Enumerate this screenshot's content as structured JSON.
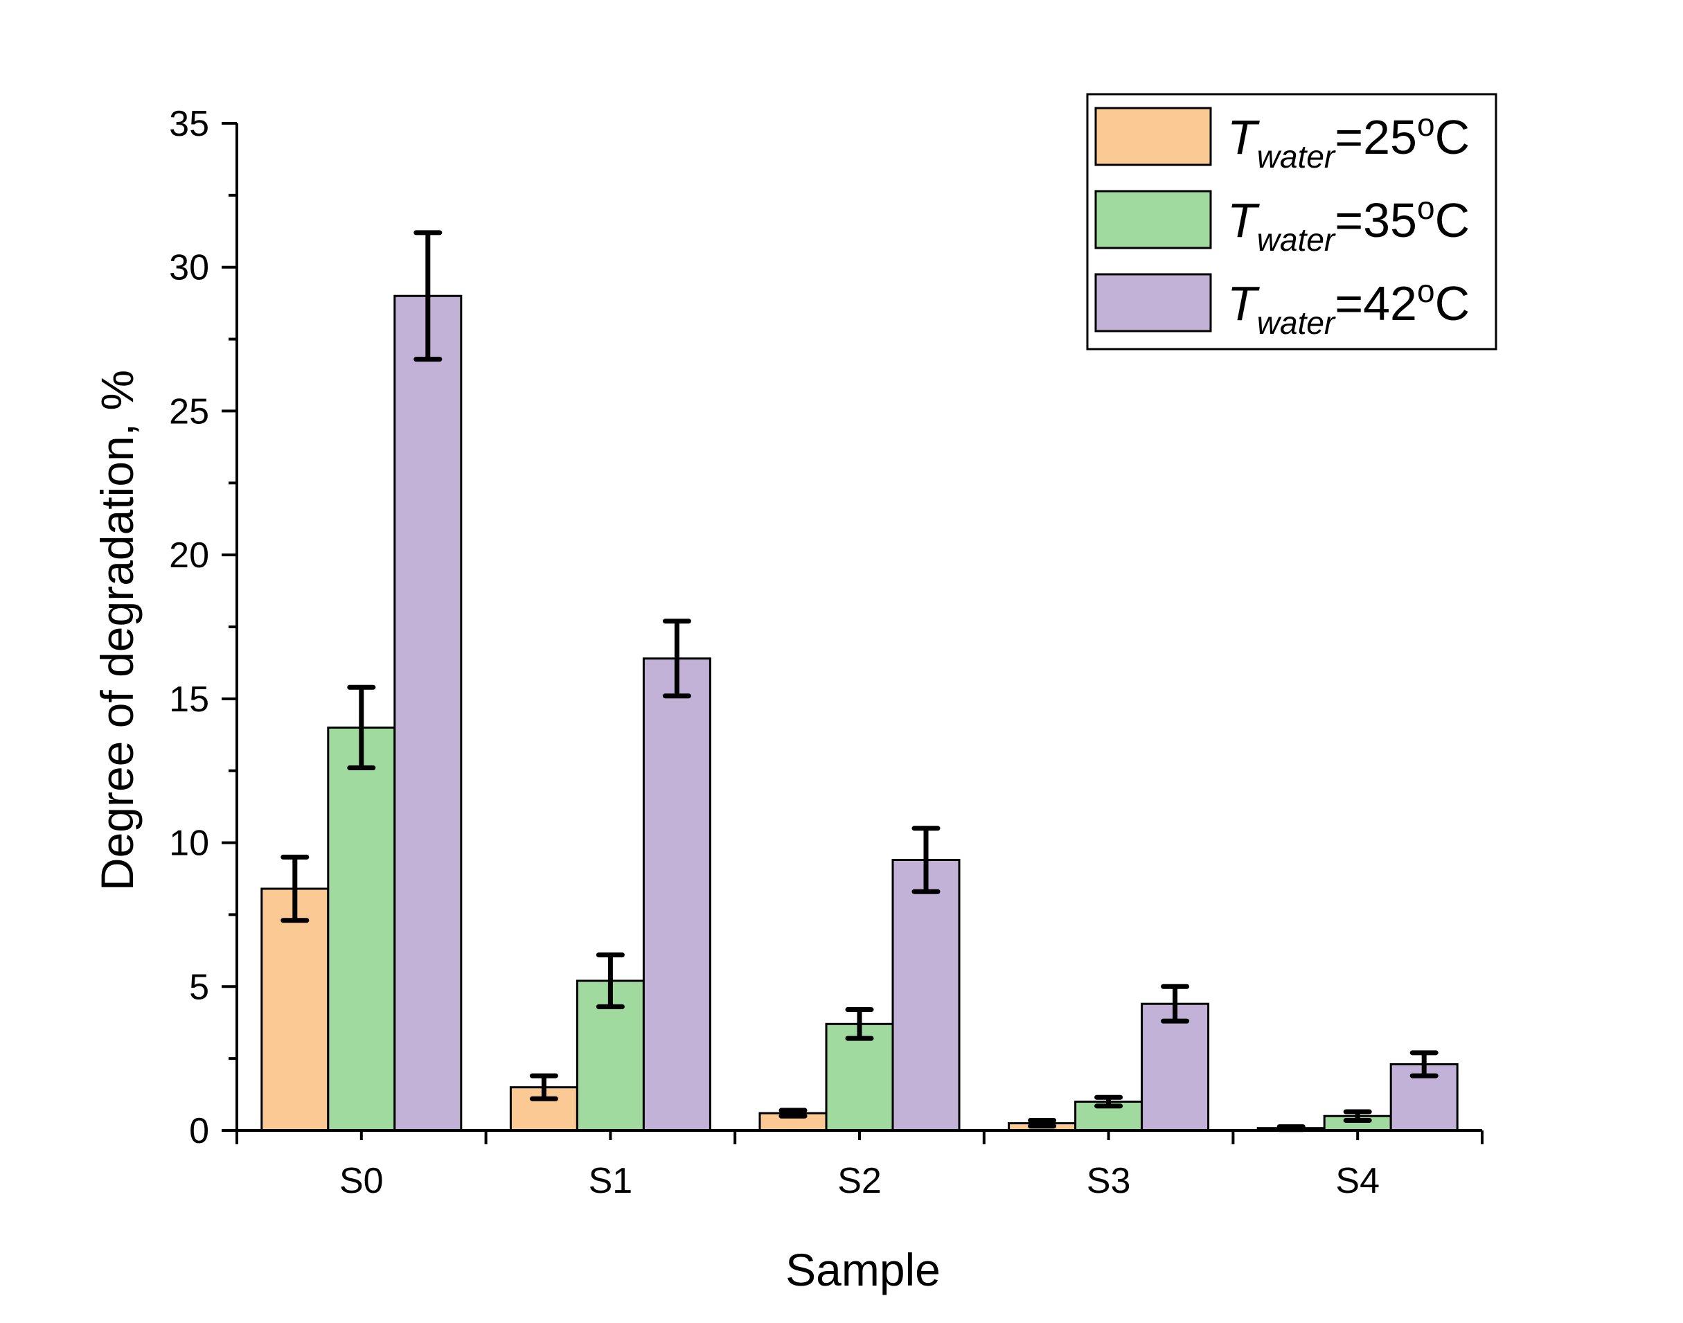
{
  "chart_data": {
    "type": "bar",
    "xlabel": "Sample",
    "ylabel": "Degree of degradation, %",
    "ylim": [
      0,
      35
    ],
    "yticks": [
      0,
      5,
      10,
      15,
      20,
      25,
      30,
      35
    ],
    "categories": [
      "S0",
      "S1",
      "S2",
      "S3",
      "S4"
    ],
    "legend_position": "top-right",
    "grid": false,
    "series": [
      {
        "name": "T_water=25°C",
        "legend_base": "T",
        "legend_sub": "water",
        "legend_rest": "=25",
        "legend_sup": "o",
        "legend_unit": "C",
        "color": "#FBC994",
        "values": [
          8.4,
          1.5,
          0.6,
          0.25,
          0.08
        ],
        "errors": [
          1.1,
          0.4,
          0.1,
          0.1,
          0.05
        ]
      },
      {
        "name": "T_water=35°C",
        "legend_base": "T",
        "legend_sub": "water",
        "legend_rest": "=35",
        "legend_sup": "o",
        "legend_unit": "C",
        "color": "#A0DA9E",
        "values": [
          14.0,
          5.2,
          3.7,
          1.0,
          0.5
        ],
        "errors": [
          1.4,
          0.9,
          0.5,
          0.15,
          0.15
        ]
      },
      {
        "name": "T_water=42°C",
        "legend_base": "T",
        "legend_sub": "water",
        "legend_rest": "=42",
        "legend_sup": "o",
        "legend_unit": "C",
        "color": "#C3B2D7",
        "values": [
          29.0,
          16.4,
          9.4,
          4.4,
          2.3
        ],
        "errors": [
          2.2,
          1.3,
          1.1,
          0.6,
          0.4
        ]
      }
    ]
  }
}
